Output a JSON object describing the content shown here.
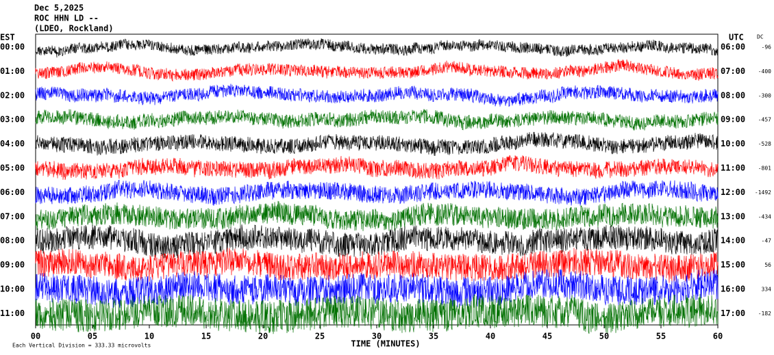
{
  "header": {
    "lines": [
      "Dec 5,2025",
      "ROC HHN LD --",
      "(LDEO, Rockland)"
    ],
    "left_zone": "EST",
    "right_zone": "UTC",
    "dc_header": "DC"
  },
  "rows": [
    {
      "est": "00:00",
      "utc": "06:00",
      "dc": "-96",
      "color": "#000000"
    },
    {
      "est": "01:00",
      "utc": "07:00",
      "dc": "-400",
      "color": "#ff0000"
    },
    {
      "est": "02:00",
      "utc": "08:00",
      "dc": "-300",
      "color": "#0000ff"
    },
    {
      "est": "03:00",
      "utc": "09:00",
      "dc": "-457",
      "color": "#007000"
    },
    {
      "est": "04:00",
      "utc": "10:00",
      "dc": "-528",
      "color": "#000000"
    },
    {
      "est": "05:00",
      "utc": "11:00",
      "dc": "-801",
      "color": "#ff0000"
    },
    {
      "est": "06:00",
      "utc": "12:00",
      "dc": "-1492",
      "color": "#0000ff"
    },
    {
      "est": "07:00",
      "utc": "13:00",
      "dc": "-434",
      "color": "#007000"
    },
    {
      "est": "08:00",
      "utc": "14:00",
      "dc": "-47",
      "color": "#000000"
    },
    {
      "est": "09:00",
      "utc": "15:00",
      "dc": "56",
      "color": "#ff0000"
    },
    {
      "est": "10:00",
      "utc": "16:00",
      "dc": "334",
      "color": "#0000ff"
    },
    {
      "est": "11:00",
      "utc": "17:00",
      "dc": "-182",
      "color": "#007000"
    }
  ],
  "x_axis": {
    "label": "TIME (MINUTES)",
    "xlim": [
      0,
      60
    ],
    "ticks": [
      {
        "value": 0,
        "label": "00"
      },
      {
        "value": 5,
        "label": "05"
      },
      10,
      15,
      20,
      25,
      30,
      35,
      40,
      45,
      50,
      55,
      60
    ]
  },
  "footer": "Each Vertical Division = 333.33 microvolts"
}
